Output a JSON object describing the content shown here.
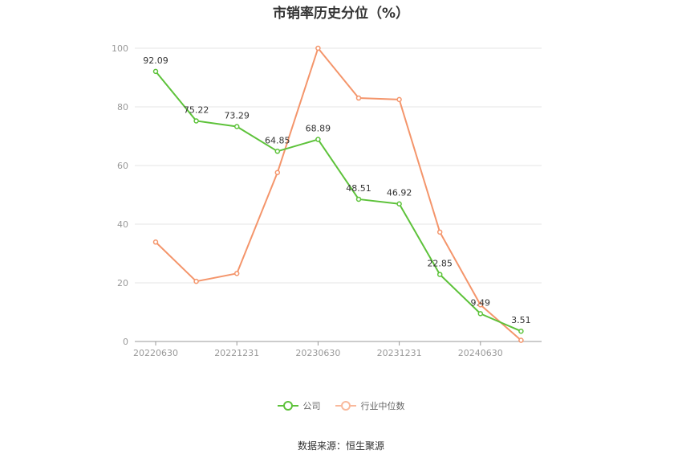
{
  "chart_data": {
    "type": "line",
    "title": "市销率历史分位（%）",
    "ylim": [
      0,
      100
    ],
    "yticks": [
      0,
      20,
      40,
      60,
      80,
      100
    ],
    "x": [
      "20220630",
      "20220930",
      "20221231",
      "20230331",
      "20230630",
      "20230930",
      "20231231",
      "20240331",
      "20240630",
      "20240930"
    ],
    "x_tick_labels": [
      "20220630",
      "20221231",
      "20230630",
      "20231231",
      "20240630"
    ],
    "series": [
      {
        "name": "公司",
        "color": "#5dc23a",
        "values": [
          92.09,
          75.22,
          73.29,
          64.85,
          68.89,
          48.51,
          46.92,
          22.85,
          9.49,
          3.51
        ],
        "labels": [
          "92.09",
          "75.22",
          "73.29",
          "64.85",
          "68.89",
          "48.51",
          "46.92",
          "22.85",
          "9.49",
          "3.51"
        ]
      },
      {
        "name": "行业中位数",
        "color": "#f4956b",
        "values": [
          33.9,
          20.5,
          23.2,
          57.6,
          100,
          83.0,
          82.5,
          37.3,
          12.5,
          0.4
        ]
      }
    ],
    "grid": true,
    "legend_position": "bottom"
  },
  "source": "数据来源：恒生聚源"
}
